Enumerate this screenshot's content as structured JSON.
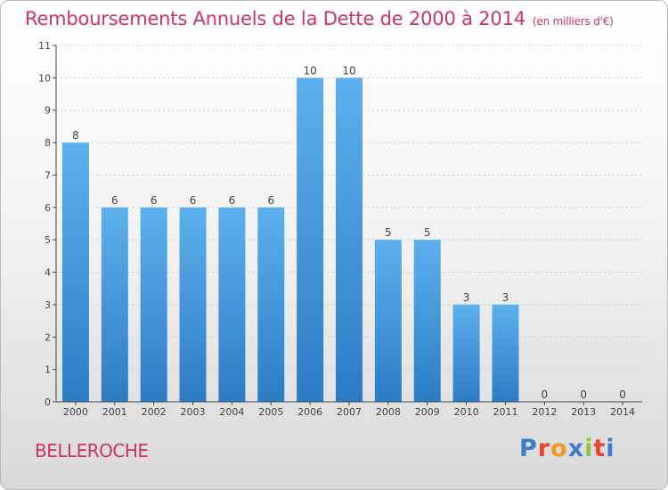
{
  "header": {
    "title": "Remboursements Annuels de la Dette de 2000 à 2014",
    "unit": "(en milliers d'€)"
  },
  "footer": {
    "commune": "BELLEROCHE",
    "logo_text": "Proxiti",
    "logo_colors": [
      "#3d7cc9",
      "#e8452c",
      "#f29a1d",
      "#3d7cc9",
      "#8cc63e",
      "#e8452c",
      "#3d7cc9"
    ]
  },
  "colors": {
    "title": "#cc3366",
    "bar": "#4a9fe0",
    "bar_light": "#5db0ee",
    "bar_dark": "#2c7cc4",
    "axis": "#444444",
    "grid": "#d0d0d0"
  },
  "chart_data": {
    "type": "bar",
    "categories": [
      "2000",
      "2001",
      "2002",
      "2003",
      "2004",
      "2005",
      "2006",
      "2007",
      "2008",
      "2009",
      "2010",
      "2011",
      "2012",
      "2013",
      "2014"
    ],
    "values": [
      8,
      6,
      6,
      6,
      6,
      6,
      10,
      10,
      5,
      5,
      3,
      3,
      0,
      0,
      0
    ],
    "title": "Remboursements Annuels de la Dette de 2000 à 2014",
    "subtitle": "(en milliers d'€)",
    "ylim": [
      0,
      11
    ],
    "yticks": [
      0,
      1,
      2,
      3,
      4,
      5,
      6,
      7,
      8,
      9,
      10,
      11
    ],
    "grid": true,
    "legend": "none"
  }
}
